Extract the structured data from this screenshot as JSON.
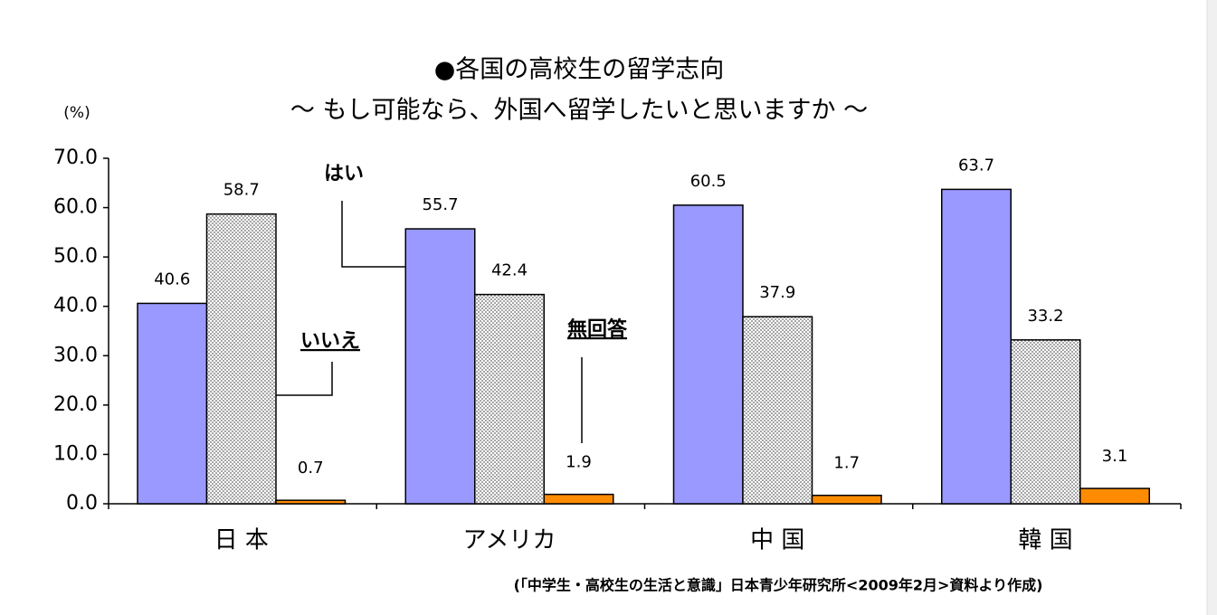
{
  "chart_data": {
    "type": "bar",
    "title": "●各国の高校生の留学志向",
    "subtitle": "～ もし可能なら、外国へ留学したいと思いますか ～",
    "y_label": "(%)",
    "source": "(「中学生・高校生の生活と意識」日本青少年研究所<2009年2月>資料より作成)",
    "categories": [
      "日 本",
      "アメリカ",
      "中 国",
      "韓 国"
    ],
    "series": [
      {
        "name": "はい",
        "color": "#9999ff",
        "values": [
          40.6,
          55.7,
          60.5,
          63.7
        ]
      },
      {
        "name": "いいえ",
        "color": "#666666",
        "pattern": "dots",
        "values": [
          58.7,
          42.4,
          37.9,
          33.2
        ]
      },
      {
        "name": "無回答",
        "color": "#ff8c00",
        "values": [
          0.7,
          1.9,
          1.7,
          3.1
        ]
      }
    ],
    "ylim": [
      0,
      70
    ],
    "yticks": [
      {
        "value": 0,
        "label": "0.0"
      },
      {
        "value": 10,
        "label": "10.0"
      },
      {
        "value": 20,
        "label": "20.0"
      },
      {
        "value": 30,
        "label": "30.0"
      },
      {
        "value": 40,
        "label": "40.0"
      },
      {
        "value": 50,
        "label": "50.0"
      },
      {
        "value": 60,
        "label": "60.0"
      },
      {
        "value": 70,
        "label": "70.0"
      }
    ]
  }
}
